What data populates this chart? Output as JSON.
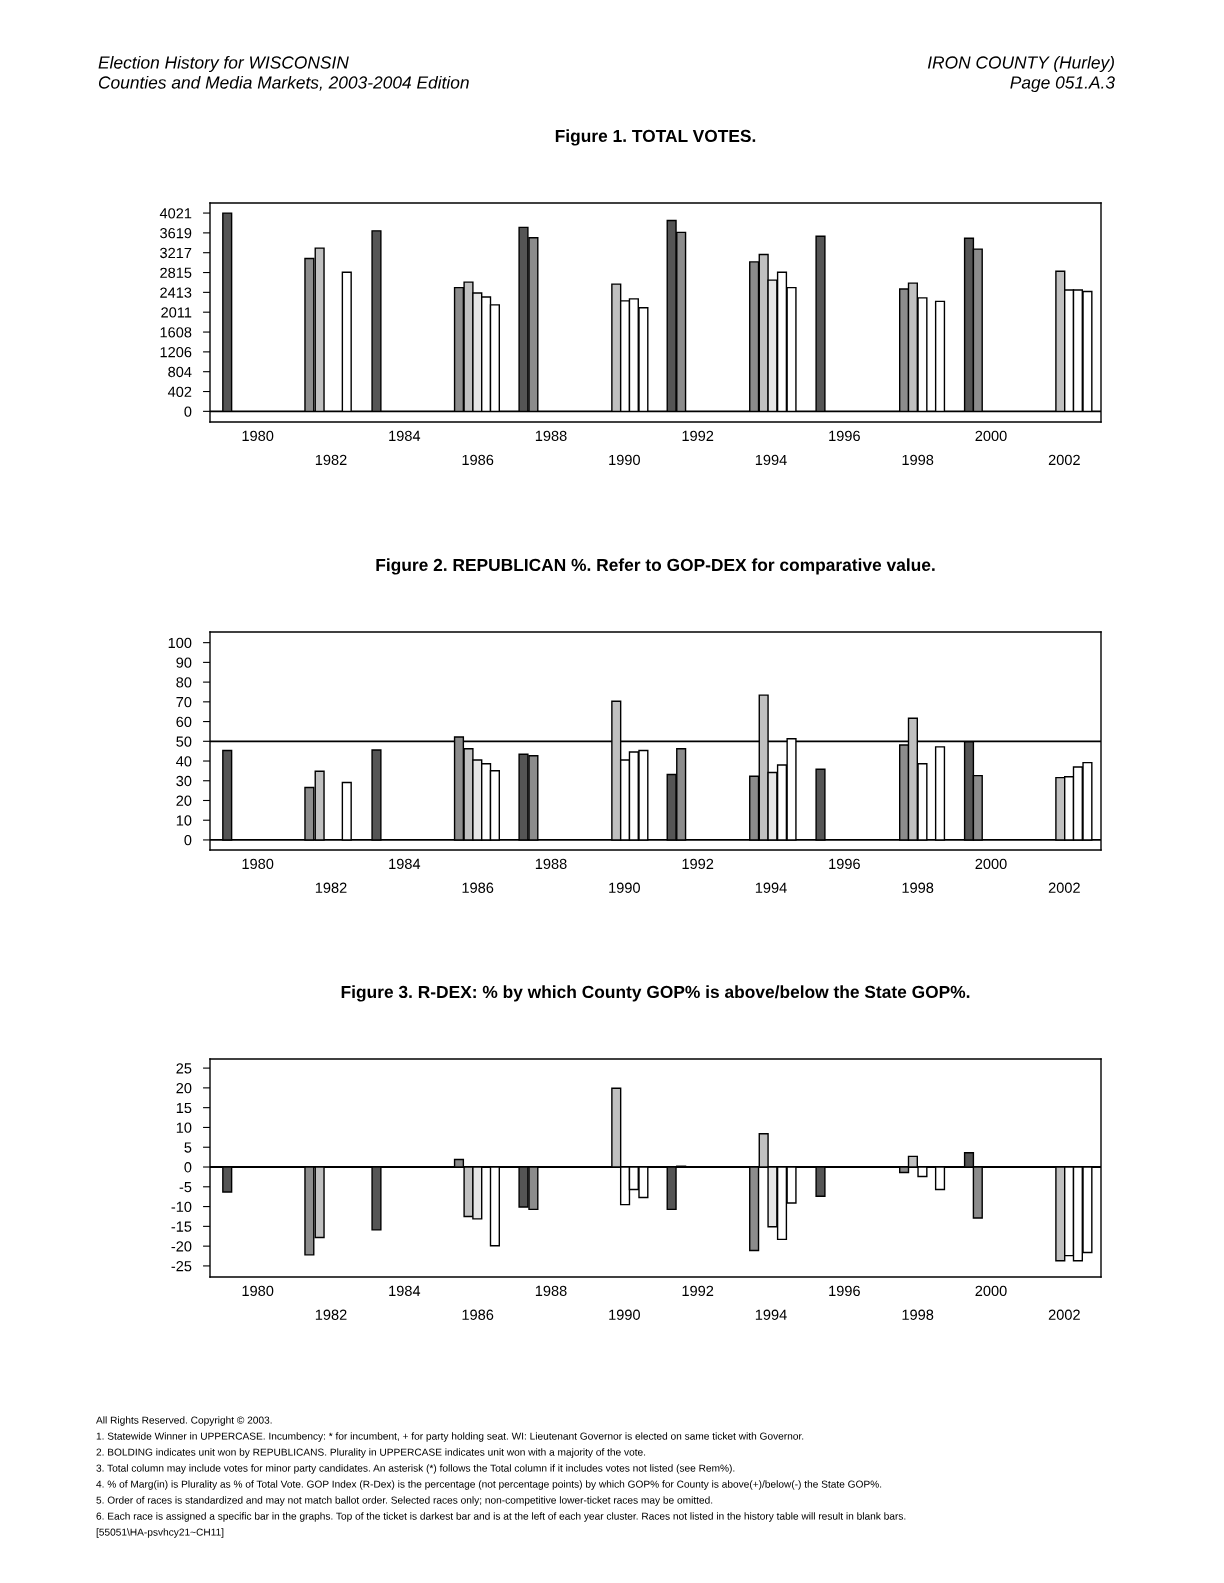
{
  "chart_data": [
    {
      "type": "bar",
      "title": "Figure 1. TOTAL VOTES.",
      "annotations": [
        "Election History for WISCONSIN",
        "Counties and Media Markets, 2003-2004 Edition",
        "IRON COUNTY (Hurley)",
        "Page 051.A.3"
      ],
      "xlim": [
        1978.7,
        2003.0
      ],
      "xticks": [
        1980,
        1984,
        1988,
        1992,
        1996,
        2000
      ],
      "x2lim": [
        1978.7,
        2003.0
      ],
      "x2ticks": [
        1982,
        1986,
        1990,
        1994,
        1998,
        2002
      ],
      "ylim": [
        -216,
        4225
      ],
      "yticks": [
        0,
        402,
        804,
        1206,
        1608,
        2011,
        2413,
        2815,
        3217,
        3619,
        4021
      ],
      "grid": false,
      "ref_lines": [
        {
          "axis": "y",
          "value": 0,
          "label": null,
          "color": "#000000"
        }
      ],
      "x": [
        1979.17,
        1981.41,
        1981.69,
        1982.43,
        1983.24,
        1985.49,
        1985.75,
        1985.99,
        1986.23,
        1986.47,
        1987.25,
        1987.52,
        1989.78,
        1990.02,
        1990.26,
        1990.52,
        1991.29,
        1991.55,
        1993.54,
        1993.8,
        1994.04,
        1994.3,
        1994.56,
        1995.35,
        1997.63,
        1997.87,
        1998.13,
        1998.61,
        1999.4,
        1999.64,
        2001.89,
        2002.13,
        2002.37,
        2002.63
      ],
      "values": [
        4020,
        3100,
        3310,
        2820,
        3660,
        2510,
        2620,
        2400,
        2320,
        2160,
        3730,
        3520,
        2580,
        2240,
        2280,
        2100,
        3870,
        3630,
        3030,
        3180,
        2660,
        2820,
        2510,
        3550,
        2480,
        2600,
        2300,
        2230,
        3510,
        3290,
        2840,
        2460,
        2460,
        2430
      ],
      "colors": [
        "#555555",
        "#8c8c8c",
        "#c0c0c0",
        "#ffffff",
        "#555555",
        "#8c8c8c",
        "#c0c0c0",
        "#e6e6e6",
        "#ffffff",
        "#ffffff",
        "#555555",
        "#8c8c8c",
        "#c0c0c0",
        "#ffffff",
        "#ffffff",
        "#ffffff",
        "#555555",
        "#8c8c8c",
        "#8c8c8c",
        "#c0c0c0",
        "#e6e6e6",
        "#ffffff",
        "#ffffff",
        "#555555",
        "#8c8c8c",
        "#c0c0c0",
        "#ffffff",
        "#ffffff",
        "#555555",
        "#8c8c8c",
        "#c0c0c0",
        "#ffffff",
        "#ffffff",
        "#ffffff"
      ]
    },
    {
      "type": "bar",
      "title": "Figure 2. REPUBLICAN %. Refer to GOP-DEX for comparative value.",
      "xlim": [
        1978.7,
        2003.0
      ],
      "xticks": [
        1980,
        1984,
        1988,
        1992,
        1996,
        2000
      ],
      "x2lim": [
        1978.7,
        2003.0
      ],
      "x2ticks": [
        1982,
        1986,
        1990,
        1994,
        1998,
        2002
      ],
      "ylim": [
        -5.1,
        105.4
      ],
      "yticks": [
        0,
        10,
        20,
        30,
        40,
        50,
        60,
        70,
        80,
        90,
        100
      ],
      "grid": false,
      "ref_lines": [
        {
          "axis": "y",
          "value": 0,
          "label": null,
          "color": "#000000"
        },
        {
          "axis": "y",
          "value": 50,
          "label": null,
          "color": "#000000"
        }
      ],
      "x": [
        1979.17,
        1981.41,
        1981.69,
        1982.43,
        1983.24,
        1985.49,
        1985.75,
        1985.99,
        1986.23,
        1986.47,
        1987.25,
        1987.52,
        1989.78,
        1990.02,
        1990.26,
        1990.52,
        1991.29,
        1991.55,
        1993.54,
        1993.8,
        1994.04,
        1994.3,
        1994.56,
        1995.35,
        1997.63,
        1997.87,
        1998.13,
        1998.61,
        1999.4,
        1999.64,
        2001.89,
        2002.13,
        2002.37,
        2002.63
      ],
      "values": [
        45.3,
        26.6,
        34.8,
        29.1,
        45.6,
        52.2,
        46.2,
        40.5,
        38.6,
        35.1,
        43.4,
        42.7,
        70.3,
        40.5,
        44.6,
        45.3,
        33.2,
        46.2,
        32.3,
        73.4,
        34.2,
        38.0,
        51.3,
        35.8,
        48.1,
        61.7,
        38.6,
        47.2,
        49.7,
        32.6,
        31.6,
        32.0,
        37.0,
        39.2
      ],
      "colors": [
        "#555555",
        "#8c8c8c",
        "#c0c0c0",
        "#ffffff",
        "#555555",
        "#8c8c8c",
        "#c0c0c0",
        "#e6e6e6",
        "#ffffff",
        "#ffffff",
        "#555555",
        "#8c8c8c",
        "#c0c0c0",
        "#ffffff",
        "#ffffff",
        "#ffffff",
        "#555555",
        "#8c8c8c",
        "#8c8c8c",
        "#c0c0c0",
        "#e6e6e6",
        "#ffffff",
        "#ffffff",
        "#555555",
        "#8c8c8c",
        "#c0c0c0",
        "#ffffff",
        "#ffffff",
        "#555555",
        "#8c8c8c",
        "#c0c0c0",
        "#ffffff",
        "#ffffff",
        "#ffffff"
      ]
    },
    {
      "type": "bar",
      "title": "Figure 3. R-DEX: % by which County GOP% is above/below the State GOP%.",
      "annotations": [
        "All Rights Reserved. Copyright © 2003.",
        "1. Statewide Winner in UPPERCASE. Incumbency: * for incumbent, + for party holding seat. WI: Lieutenant Governor is elected on same ticket with Governor.",
        "2. BOLDING indicates unit won by REPUBLICANS. Plurality in UPPERCASE indicates unit won with a majority of the vote.",
        "3. Total column may include votes for minor party candidates. An asterisk (*) follows the Total column if it includes votes not listed (see Rem%).",
        "4. % of Marg(in) is Plurality as % of Total Vote. GOP Index (R-Dex) is the percentage (not percentage points) by which GOP% for County is above(+)/below(-) the State GOP%.",
        "5. Order of races is standardized and may not match ballot order. Selected races only; non-competitive lower-ticket races may be omitted.",
        "6. Each race is assigned a specific bar in the graphs. Top of the ticket is darkest bar and is at the left of each year cluster. Races not listed in the history table will result in blank bars.",
        "[55051\\HA-psvhcy21~CH11]"
      ],
      "xlim": [
        1978.7,
        2003.0
      ],
      "xticks": [
        1980,
        1984,
        1988,
        1992,
        1996,
        2000
      ],
      "x2lim": [
        1978.7,
        2003.0
      ],
      "x2ticks": [
        1982,
        1986,
        1990,
        1994,
        1998,
        2002
      ],
      "ylim": [
        -27.8,
        27.3
      ],
      "yticks": [
        25,
        20,
        15,
        10,
        5,
        0,
        -5,
        -10,
        -15,
        -20,
        -25
      ],
      "grid": false,
      "ref_lines": [
        {
          "axis": "y",
          "value": 0,
          "label": null,
          "color": "#000000"
        }
      ],
      "x": [
        1979.17,
        1981.41,
        1981.69,
        1982.43,
        1983.24,
        1985.49,
        1985.75,
        1985.99,
        1986.23,
        1986.47,
        1987.25,
        1987.52,
        1989.78,
        1990.02,
        1990.26,
        1990.52,
        1991.29,
        1991.55,
        1993.54,
        1993.8,
        1994.04,
        1994.3,
        1994.56,
        1995.35,
        1997.63,
        1997.87,
        1998.13,
        1998.61,
        1999.4,
        1999.64,
        2001.89,
        2002.13,
        2002.37,
        2002.63
      ],
      "values": [
        -6.3,
        -22.2,
        -17.8,
        null,
        -15.9,
        1.9,
        -12.5,
        -13.1,
        null,
        -19.9,
        -10.1,
        -10.7,
        19.9,
        -9.5,
        -5.7,
        -7.7,
        -10.7,
        0.2,
        -21.1,
        8.4,
        -15.1,
        -18.3,
        -9.1,
        -7.4,
        -1.4,
        2.7,
        -2.4,
        -5.7,
        3.6,
        -12.9,
        -23.7,
        -22.4,
        -23.7,
        -21.6
      ],
      "colors": [
        "#555555",
        "#8c8c8c",
        "#c0c0c0",
        "#ffffff",
        "#555555",
        "#8c8c8c",
        "#c0c0c0",
        "#e6e6e6",
        "#ffffff",
        "#ffffff",
        "#555555",
        "#8c8c8c",
        "#c0c0c0",
        "#ffffff",
        "#ffffff",
        "#ffffff",
        "#555555",
        "#8c8c8c",
        "#8c8c8c",
        "#c0c0c0",
        "#e6e6e6",
        "#ffffff",
        "#ffffff",
        "#555555",
        "#8c8c8c",
        "#c0c0c0",
        "#ffffff",
        "#ffffff",
        "#555555",
        "#8c8c8c",
        "#c0c0c0",
        "#ffffff",
        "#ffffff",
        "#ffffff"
      ]
    }
  ]
}
